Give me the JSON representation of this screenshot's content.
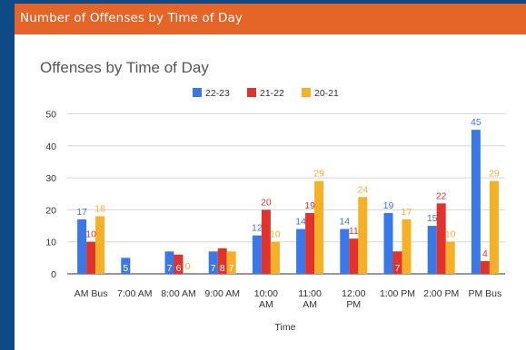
{
  "panel": {
    "title": "Number of Offenses by Time of Day"
  },
  "chart_data": {
    "type": "bar",
    "title": "Offenses by Time of Day",
    "xlabel": "Time",
    "ylabel": "",
    "ylim": [
      0,
      50
    ],
    "yticks": [
      "0",
      "10",
      "20",
      "30",
      "40",
      "50"
    ],
    "grid": true,
    "legend_position": "top-center",
    "categories": [
      [
        "AM Bus"
      ],
      [
        "7:00 AM"
      ],
      [
        "8:00 AM"
      ],
      [
        "9:00 AM"
      ],
      [
        "10:00",
        "AM"
      ],
      [
        "11:00",
        "AM"
      ],
      [
        "12:00",
        "PM"
      ],
      [
        "1:00 PM"
      ],
      [
        "2:00 PM"
      ],
      [
        "PM Bus"
      ]
    ],
    "series": [
      {
        "name": "22-23",
        "color": "#3b78e7",
        "values": [
          17,
          5,
          7,
          7,
          12,
          14,
          14,
          19,
          15,
          45
        ]
      },
      {
        "name": "21-22",
        "color": "#e2322c",
        "values": [
          10,
          null,
          6,
          8,
          20,
          19,
          11,
          7,
          22,
          4
        ]
      },
      {
        "name": "20-21",
        "color": "#f6b026",
        "values": [
          18,
          null,
          0,
          7,
          10,
          29,
          24,
          17,
          10,
          29
        ]
      }
    ]
  }
}
